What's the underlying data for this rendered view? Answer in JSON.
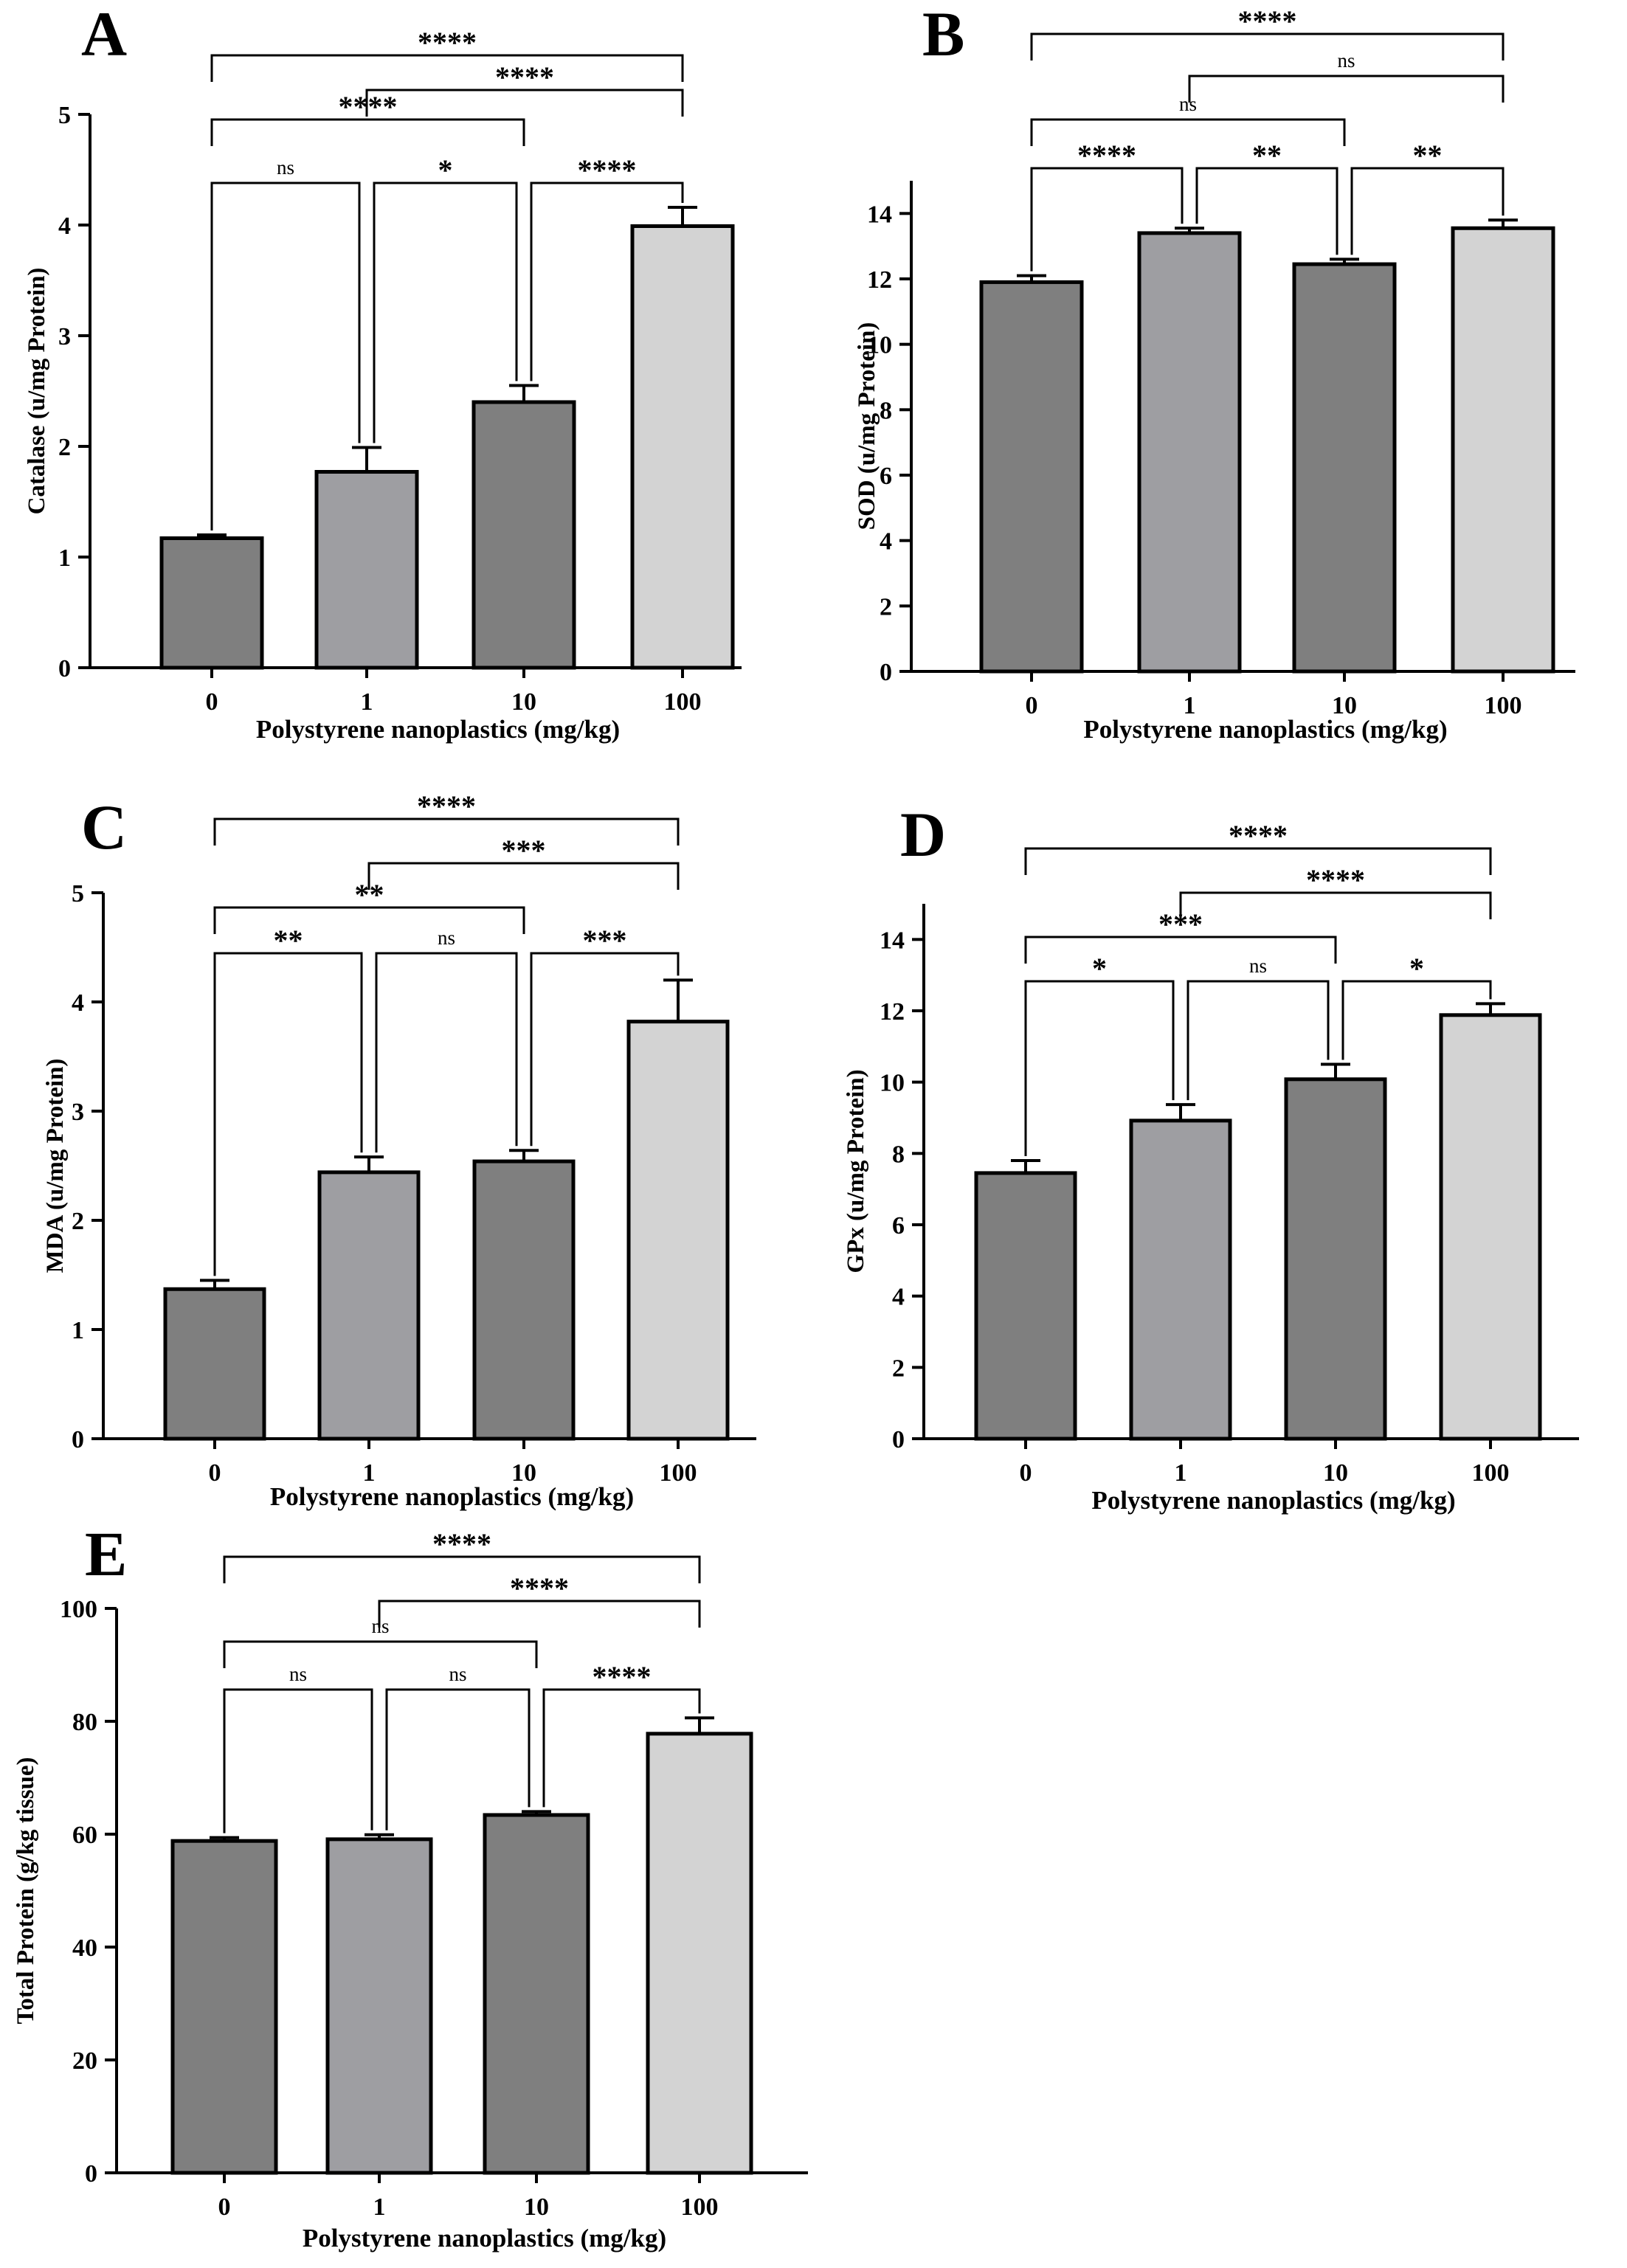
{
  "figure": {
    "colors": {
      "bar_0": "#7f7f7f",
      "bar_1": "#9e9ea2",
      "bar_10": "#7f7f7f",
      "bar_100": "#d3d3d3",
      "line": "#000000"
    }
  },
  "chart_data": [
    {
      "panel": "A",
      "type": "bar",
      "title": "",
      "xlabel": "Polystyrene nanoplastics (mg/kg)",
      "ylabel": "Catalase (u/mg Protein)",
      "categories": [
        "0",
        "1",
        "10",
        "100"
      ],
      "values": [
        1.17,
        1.77,
        2.4,
        3.99
      ],
      "errors": [
        0.03,
        0.22,
        0.15,
        0.17
      ],
      "ylim": [
        0,
        5
      ],
      "yticks": [
        0,
        1,
        2,
        3,
        4,
        5
      ],
      "comparisons": [
        {
          "from": 0,
          "to": 1,
          "label": "ns"
        },
        {
          "from": 1,
          "to": 2,
          "label": "*"
        },
        {
          "from": 2,
          "to": 3,
          "label": "****"
        },
        {
          "from": 0,
          "to": 2,
          "label": "****"
        },
        {
          "from": 1,
          "to": 3,
          "label": "****"
        },
        {
          "from": 0,
          "to": 3,
          "label": "****"
        }
      ]
    },
    {
      "panel": "B",
      "type": "bar",
      "title": "",
      "xlabel": "Polystyrene nanoplastics (mg/kg)",
      "ylabel": "SOD (u/mg Protein)",
      "categories": [
        "0",
        "1",
        "10",
        "100"
      ],
      "values": [
        11.9,
        13.4,
        12.45,
        13.55
      ],
      "errors": [
        0.2,
        0.15,
        0.15,
        0.25
      ],
      "ylim": [
        0,
        15
      ],
      "yticks": [
        0,
        2,
        4,
        6,
        8,
        10,
        12,
        14
      ],
      "comparisons": [
        {
          "from": 0,
          "to": 1,
          "label": "****"
        },
        {
          "from": 1,
          "to": 2,
          "label": "**"
        },
        {
          "from": 2,
          "to": 3,
          "label": "**"
        },
        {
          "from": 0,
          "to": 2,
          "label": "ns"
        },
        {
          "from": 1,
          "to": 3,
          "label": "ns"
        },
        {
          "from": 0,
          "to": 3,
          "label": "****"
        }
      ]
    },
    {
      "panel": "C",
      "type": "bar",
      "title": "",
      "xlabel": "Polystyrene nanoplastics (mg/kg)",
      "ylabel": "MDA (u/mg Protein)",
      "categories": [
        "0",
        "1",
        "10",
        "100"
      ],
      "values": [
        1.37,
        2.44,
        2.54,
        3.82
      ],
      "errors": [
        0.08,
        0.14,
        0.1,
        0.38
      ],
      "ylim": [
        0,
        5
      ],
      "yticks": [
        0,
        1,
        2,
        3,
        4,
        5
      ],
      "comparisons": [
        {
          "from": 0,
          "to": 1,
          "label": "**"
        },
        {
          "from": 1,
          "to": 2,
          "label": "ns"
        },
        {
          "from": 2,
          "to": 3,
          "label": "***"
        },
        {
          "from": 0,
          "to": 2,
          "label": "**"
        },
        {
          "from": 1,
          "to": 3,
          "label": "***"
        },
        {
          "from": 0,
          "to": 3,
          "label": "****"
        }
      ]
    },
    {
      "panel": "D",
      "type": "bar",
      "title": "",
      "xlabel": "Polystyrene nanoplastics (mg/kg)",
      "ylabel": "GPx (u/mg Protein)",
      "categories": [
        "0",
        "1",
        "10",
        "100"
      ],
      "values": [
        7.45,
        8.92,
        10.08,
        11.88
      ],
      "errors": [
        0.35,
        0.45,
        0.42,
        0.32
      ],
      "ylim": [
        0,
        15
      ],
      "yticks": [
        0,
        2,
        4,
        6,
        8,
        10,
        12,
        14
      ],
      "comparisons": [
        {
          "from": 0,
          "to": 1,
          "label": "*"
        },
        {
          "from": 1,
          "to": 2,
          "label": "ns"
        },
        {
          "from": 2,
          "to": 3,
          "label": "*"
        },
        {
          "from": 0,
          "to": 2,
          "label": "***"
        },
        {
          "from": 1,
          "to": 3,
          "label": "****"
        },
        {
          "from": 0,
          "to": 3,
          "label": "****"
        }
      ]
    },
    {
      "panel": "E",
      "type": "bar",
      "title": "",
      "xlabel": "Polystyrene nanoplastics (mg/kg)",
      "ylabel": "Total Protein (g/kg tissue)",
      "categories": [
        "0",
        "1",
        "10",
        "100"
      ],
      "values": [
        58.8,
        59.1,
        63.4,
        77.8
      ],
      "errors": [
        0.6,
        0.8,
        0.6,
        2.8
      ],
      "ylim": [
        0,
        100
      ],
      "yticks": [
        0,
        20,
        40,
        60,
        80,
        100
      ],
      "comparisons": [
        {
          "from": 0,
          "to": 1,
          "label": "ns"
        },
        {
          "from": 1,
          "to": 2,
          "label": "ns"
        },
        {
          "from": 2,
          "to": 3,
          "label": "****"
        },
        {
          "from": 0,
          "to": 2,
          "label": "ns"
        },
        {
          "from": 1,
          "to": 3,
          "label": "****"
        },
        {
          "from": 0,
          "to": 3,
          "label": "****"
        }
      ]
    }
  ]
}
